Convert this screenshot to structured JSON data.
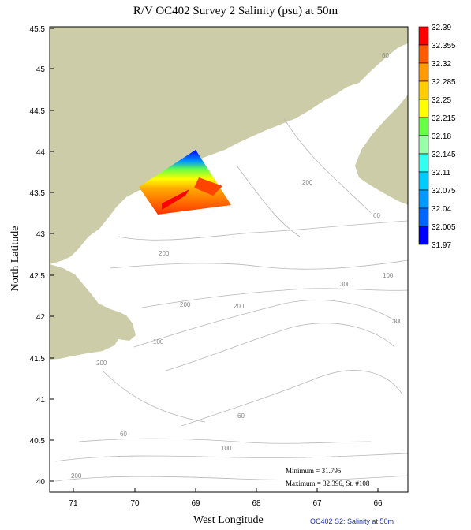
{
  "title": "R/V OC402 Survey 2 Salinity (psu) at 50m",
  "ylabel": "North Latitude",
  "xlabel": "West Longitude",
  "footer": "OC402  S2: Salinity at 50m",
  "lat_ticks": [
    "45.5",
    "45",
    "44.5",
    "44",
    "43.5",
    "43",
    "42.5",
    "42",
    "41.5",
    "41",
    "40.5",
    "40"
  ],
  "lon_ticks": [
    "71",
    "70",
    "69",
    "68",
    "67",
    "66"
  ],
  "colorbar": {
    "labels": [
      "32.39",
      "32.355",
      "32.32",
      "32.285",
      "32.25",
      "32.215",
      "32.18",
      "32.145",
      "32.11",
      "32.075",
      "32.04",
      "32.005",
      "31.97"
    ],
    "colors": [
      "#ff0000",
      "#ff5a00",
      "#ff9a00",
      "#ffcc00",
      "#ffff00",
      "#66ff44",
      "#99ffaa",
      "#33ffee",
      "#00ccff",
      "#0099ff",
      "#0066ff",
      "#0033ff",
      "#0000ff"
    ]
  },
  "isobaths": [
    "60",
    "200",
    "60",
    "200",
    "200",
    "300",
    "100",
    "200",
    "300",
    "100",
    "200",
    "60",
    "60",
    "100",
    "200"
  ],
  "stats": {
    "minimum": "Minimum = 31.795",
    "maximum": "Maximum = 32.396, St. #108"
  },
  "colors": {
    "land": "#cccca8",
    "contour": "#b8b8b8",
    "footer": "#1a2db0"
  }
}
